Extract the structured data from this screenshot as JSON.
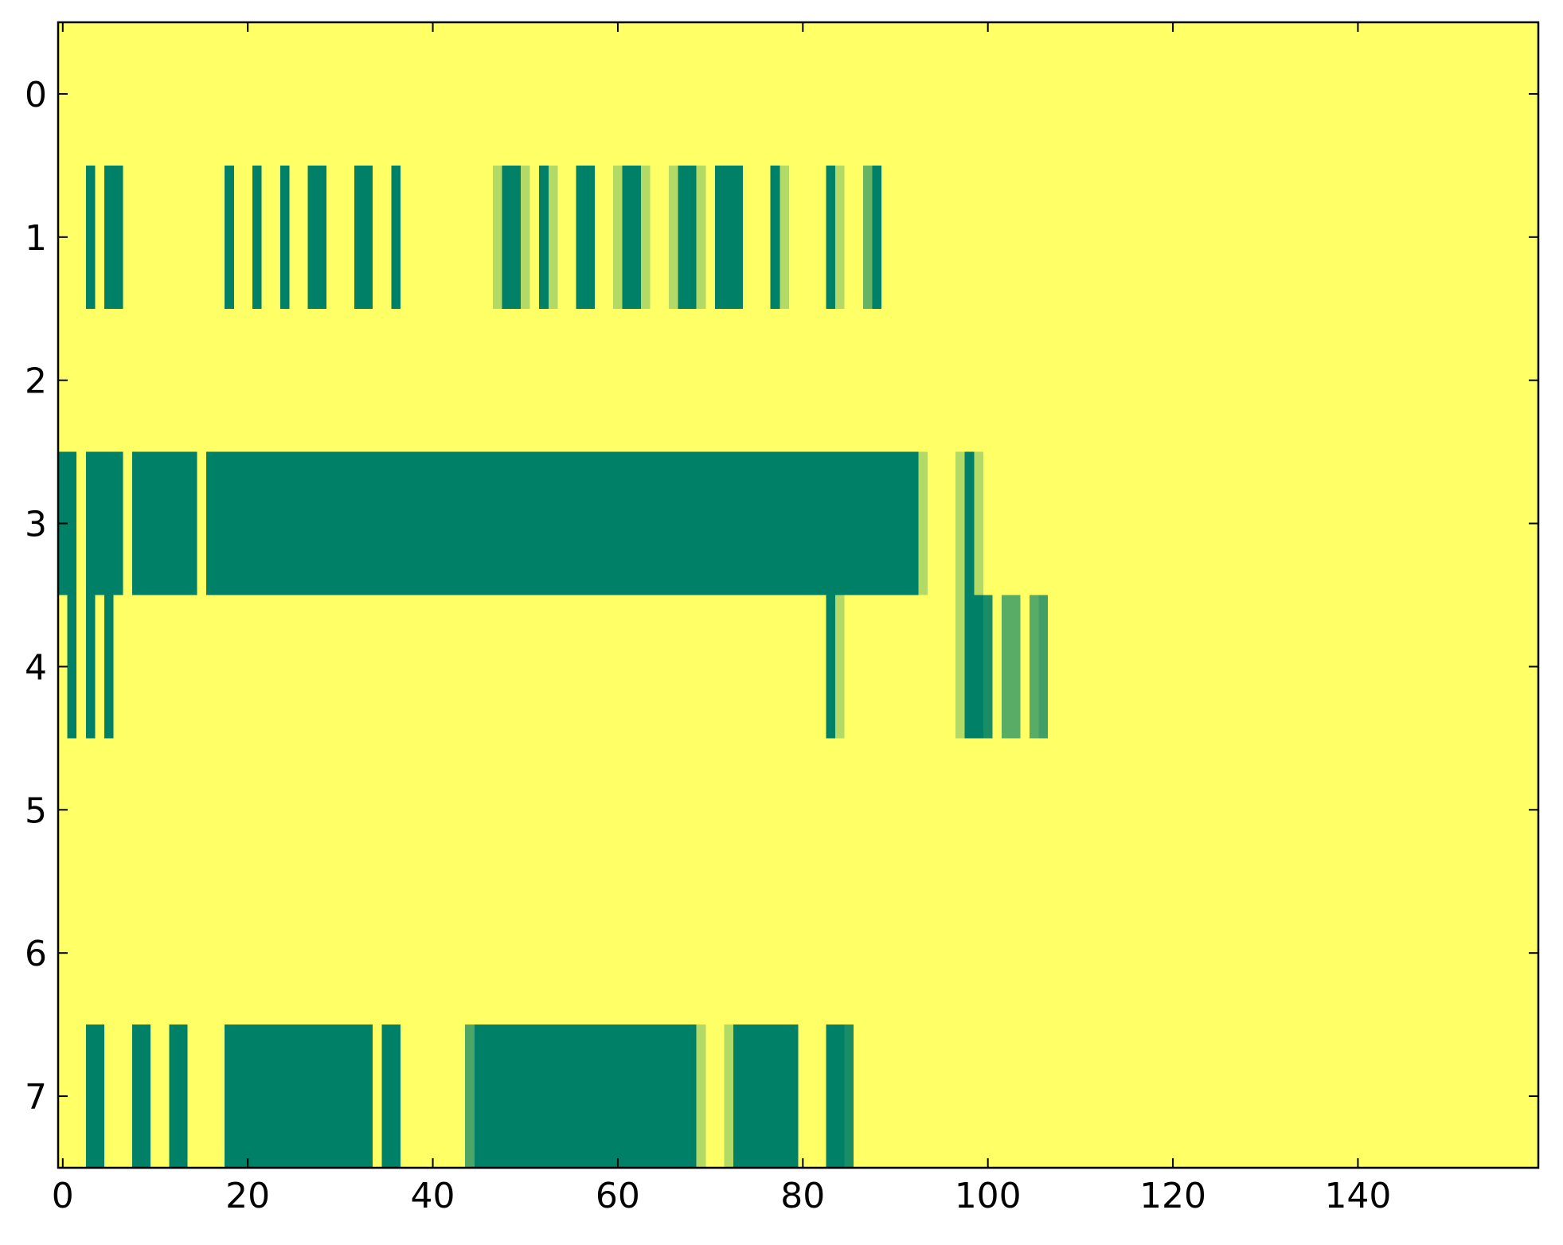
{
  "chart_data": {
    "type": "heatmap",
    "colormap": "summer",
    "clim": [
      0,
      1
    ],
    "xlim": [
      -0.5,
      159.5
    ],
    "ylim": [
      -0.5,
      7.5
    ],
    "y_inverted": true,
    "xticks": [
      0,
      20,
      40,
      60,
      80,
      100,
      120,
      140
    ],
    "yticks": [
      0,
      1,
      2,
      3,
      4,
      5,
      6,
      7
    ],
    "z": [
      [
        1,
        1,
        1,
        1,
        1,
        1,
        1,
        1,
        1,
        1,
        1,
        1,
        1,
        1,
        1,
        1,
        1,
        1,
        1,
        1,
        1,
        1,
        1,
        1,
        1,
        1,
        1,
        1,
        1,
        1,
        1,
        1,
        1,
        1,
        1,
        1,
        1,
        1,
        1,
        1,
        1,
        1,
        1,
        1,
        1,
        1,
        1,
        1,
        1,
        1,
        1,
        1,
        1,
        1,
        1,
        1,
        1,
        1,
        1,
        1,
        1,
        1,
        1,
        1,
        1,
        1,
        1,
        1,
        1,
        1,
        1,
        1,
        1,
        1,
        1,
        1,
        1,
        1,
        1,
        1,
        1,
        1,
        1,
        1,
        1,
        1,
        1,
        1,
        1,
        1,
        1,
        1,
        1,
        1,
        1,
        1,
        1,
        1,
        1,
        1,
        1,
        1,
        1,
        1,
        1,
        1,
        1,
        1,
        1,
        1,
        1,
        1,
        1,
        1,
        1,
        1,
        1,
        1,
        1,
        1,
        1,
        1,
        1,
        1,
        1,
        1,
        1,
        1,
        1,
        1,
        1,
        1,
        1,
        1,
        1,
        1,
        1,
        1,
        1,
        1,
        1,
        1,
        1,
        1,
        1,
        1,
        1,
        1,
        1,
        1,
        1,
        1,
        1,
        1,
        1,
        1,
        1,
        1,
        1,
        1
      ],
      [
        1,
        1,
        1,
        0,
        1,
        0,
        0,
        1,
        1,
        1,
        1,
        1,
        1,
        1,
        1,
        1,
        1,
        1,
        0,
        1,
        1,
        0,
        1,
        1,
        0,
        1,
        1,
        0,
        0,
        1,
        1,
        1,
        0,
        0,
        1,
        1,
        0,
        1,
        1,
        1,
        1,
        1,
        1,
        1,
        1,
        1,
        1,
        0.7,
        0,
        0,
        0.7,
        1,
        0,
        0.7,
        1,
        1,
        0,
        0,
        1,
        1,
        0.7,
        0,
        0,
        0.7,
        1,
        1,
        0.7,
        0,
        0,
        0.7,
        1,
        0,
        0,
        0,
        1,
        1,
        1,
        0,
        0.7,
        1,
        1,
        1,
        1,
        0,
        0.7,
        1,
        1,
        0.4,
        0,
        1,
        1,
        1,
        1,
        1,
        1,
        1,
        1,
        1,
        1,
        1,
        1,
        1,
        1,
        1,
        1,
        1,
        1,
        1,
        1,
        1,
        1,
        1,
        1,
        1,
        1,
        1,
        1,
        1,
        1,
        1,
        1,
        1,
        1,
        1,
        1,
        1,
        1,
        1,
        1,
        1,
        1,
        1,
        1,
        1,
        1,
        1,
        1,
        1,
        1,
        1,
        1,
        1,
        1,
        1,
        1,
        1,
        1,
        1,
        1,
        1,
        1,
        1,
        1,
        1,
        1,
        1,
        1,
        1,
        1,
        1
      ],
      [
        1,
        1,
        1,
        1,
        1,
        1,
        1,
        1,
        1,
        1,
        1,
        1,
        1,
        1,
        1,
        1,
        1,
        1,
        1,
        1,
        1,
        1,
        1,
        1,
        1,
        1,
        1,
        1,
        1,
        1,
        1,
        1,
        1,
        1,
        1,
        1,
        1,
        1,
        1,
        1,
        1,
        1,
        1,
        1,
        1,
        1,
        1,
        1,
        1,
        1,
        1,
        1,
        1,
        1,
        1,
        1,
        1,
        1,
        1,
        1,
        1,
        1,
        1,
        1,
        1,
        1,
        1,
        1,
        1,
        1,
        1,
        1,
        1,
        1,
        1,
        1,
        1,
        1,
        1,
        1,
        1,
        1,
        1,
        1,
        1,
        1,
        1,
        1,
        1,
        1,
        1,
        1,
        1,
        1,
        1,
        1,
        1,
        1,
        1,
        1,
        1,
        1,
        1,
        1,
        1,
        1,
        1,
        1,
        1,
        1,
        1,
        1,
        1,
        1,
        1,
        1,
        1,
        1,
        1,
        1,
        1,
        1,
        1,
        1,
        1,
        1,
        1,
        1,
        1,
        1,
        1,
        1,
        1,
        1,
        1,
        1,
        1,
        1,
        1,
        1,
        1,
        1,
        1,
        1,
        1,
        1,
        1,
        1,
        1,
        1,
        1,
        1,
        1,
        1,
        1,
        1,
        1,
        1,
        1,
        1
      ],
      [
        0,
        0,
        1,
        0,
        0,
        0,
        0,
        1,
        0,
        0,
        0,
        0,
        0,
        0,
        0,
        1,
        0,
        0,
        0,
        0,
        0,
        0,
        0,
        0,
        0,
        0,
        0,
        0,
        0,
        0,
        0,
        0,
        0,
        0,
        0,
        0,
        0,
        0,
        0,
        0,
        0,
        0,
        0,
        0,
        0,
        0,
        0,
        0,
        0,
        0,
        0,
        0,
        0,
        0,
        0,
        0,
        0,
        0,
        0,
        0,
        0,
        0,
        0,
        0,
        0,
        0,
        0,
        0,
        0,
        0,
        0,
        0,
        0,
        0,
        0,
        0,
        0,
        0,
        0,
        0,
        0,
        0,
        0,
        0,
        0,
        0,
        0,
        0,
        0,
        0,
        0,
        0,
        0,
        0.7,
        1,
        1,
        1,
        0.7,
        0,
        0.7,
        1,
        1,
        1,
        1,
        1,
        1,
        1,
        1,
        1,
        1,
        1,
        1,
        1,
        1,
        1,
        1,
        1,
        1,
        1,
        1,
        1,
        1,
        1,
        1,
        1,
        1,
        1,
        1,
        1,
        1,
        1,
        1,
        1,
        1,
        1,
        1,
        1,
        1,
        1,
        1,
        1,
        1,
        1,
        1,
        1,
        1,
        1,
        1,
        1,
        1,
        1,
        1,
        1,
        1,
        1,
        1,
        1,
        1,
        1,
        1
      ],
      [
        1,
        0,
        1,
        0,
        1,
        0,
        1,
        1,
        1,
        1,
        1,
        1,
        1,
        1,
        1,
        1,
        1,
        1,
        1,
        1,
        1,
        1,
        1,
        1,
        1,
        1,
        1,
        1,
        1,
        1,
        1,
        1,
        1,
        1,
        1,
        1,
        1,
        1,
        1,
        1,
        1,
        1,
        1,
        1,
        1,
        1,
        1,
        1,
        1,
        1,
        1,
        1,
        1,
        1,
        1,
        1,
        1,
        1,
        1,
        1,
        1,
        1,
        1,
        1,
        1,
        1,
        1,
        1,
        1,
        1,
        1,
        1,
        1,
        1,
        1,
        1,
        1,
        1,
        1,
        1,
        1,
        1,
        1,
        0,
        0.7,
        1,
        1,
        1,
        1,
        1,
        1,
        1,
        1,
        1,
        1,
        1,
        1,
        0.7,
        0,
        0,
        0.1,
        1,
        0.35,
        0.35,
        1,
        0.35,
        0.25,
        1,
        1,
        1,
        1,
        1,
        1,
        1,
        1,
        1,
        1,
        1,
        1,
        1,
        1,
        1,
        1,
        1,
        1,
        1,
        1,
        1,
        1,
        1,
        1,
        1,
        1,
        1,
        1,
        1,
        1,
        1,
        1,
        1,
        1,
        1,
        1,
        1,
        1,
        1,
        1,
        1,
        1,
        1,
        1,
        1,
        1,
        1,
        1,
        1,
        1,
        1,
        1,
        1
      ],
      [
        1,
        1,
        1,
        1,
        1,
        1,
        1,
        1,
        1,
        1,
        1,
        1,
        1,
        1,
        1,
        1,
        1,
        1,
        1,
        1,
        1,
        1,
        1,
        1,
        1,
        1,
        1,
        1,
        1,
        1,
        1,
        1,
        1,
        1,
        1,
        1,
        1,
        1,
        1,
        1,
        1,
        1,
        1,
        1,
        1,
        1,
        1,
        1,
        1,
        1,
        1,
        1,
        1,
        1,
        1,
        1,
        1,
        1,
        1,
        1,
        1,
        1,
        1,
        1,
        1,
        1,
        1,
        1,
        1,
        1,
        1,
        1,
        1,
        1,
        1,
        1,
        1,
        1,
        1,
        1,
        1,
        1,
        1,
        1,
        1,
        1,
        1,
        1,
        1,
        1,
        1,
        1,
        1,
        1,
        1,
        1,
        1,
        1,
        1,
        1,
        1,
        1,
        1,
        1,
        1,
        1,
        1,
        1,
        1,
        1,
        1,
        1,
        1,
        1,
        1,
        1,
        1,
        1,
        1,
        1,
        1,
        1,
        1,
        1,
        1,
        1,
        1,
        1,
        1,
        1,
        1,
        1,
        1,
        1,
        1,
        1,
        1,
        1,
        1,
        1,
        1,
        1,
        1,
        1,
        1,
        1,
        1,
        1,
        1,
        1,
        1,
        1,
        1,
        1,
        1,
        1,
        1,
        1,
        1,
        1
      ],
      [
        1,
        1,
        1,
        1,
        1,
        1,
        1,
        1,
        1,
        1,
        1,
        1,
        1,
        1,
        1,
        1,
        1,
        1,
        1,
        1,
        1,
        1,
        1,
        1,
        1,
        1,
        1,
        1,
        1,
        1,
        1,
        1,
        1,
        1,
        1,
        1,
        1,
        1,
        1,
        1,
        1,
        1,
        1,
        1,
        1,
        1,
        1,
        1,
        1,
        1,
        1,
        1,
        1,
        1,
        1,
        1,
        1,
        1,
        1,
        1,
        1,
        1,
        1,
        1,
        1,
        1,
        1,
        1,
        1,
        1,
        1,
        1,
        1,
        1,
        1,
        1,
        1,
        1,
        1,
        1,
        1,
        1,
        1,
        1,
        1,
        1,
        1,
        1,
        1,
        1,
        1,
        1,
        1,
        1,
        1,
        1,
        1,
        1,
        1,
        1,
        1,
        1,
        1,
        1,
        1,
        1,
        1,
        1,
        1,
        1,
        1,
        1,
        1,
        1,
        1,
        1,
        1,
        1,
        1,
        1,
        1,
        1,
        1,
        1,
        1,
        1,
        1,
        1,
        1,
        1,
        1,
        1,
        1,
        1,
        1,
        1,
        1,
        1,
        1,
        1,
        1,
        1,
        1,
        1,
        1,
        1,
        1,
        1,
        1,
        1,
        1,
        1,
        1,
        1,
        1,
        1,
        1,
        1,
        1,
        1
      ],
      [
        1,
        1,
        1,
        0,
        0,
        1,
        1,
        1,
        0,
        0,
        1,
        1,
        0,
        0,
        1,
        1,
        1,
        1,
        0,
        0,
        0,
        0,
        0,
        0,
        0,
        0,
        0,
        0,
        0,
        0,
        0,
        0,
        0,
        0,
        1,
        0,
        0,
        1,
        1,
        1,
        1,
        1,
        1,
        1,
        0.3,
        0,
        0,
        0,
        0,
        0,
        0,
        0,
        0,
        0,
        0,
        0,
        0,
        0,
        0,
        0,
        0,
        0,
        0,
        0,
        0,
        0,
        0,
        0,
        0,
        0.7,
        1,
        1,
        0.7,
        0,
        0,
        0,
        0,
        0,
        0,
        0,
        1,
        1,
        1,
        0,
        0,
        0.1,
        1,
        1,
        1,
        1,
        1,
        1,
        1,
        1,
        1,
        1,
        1,
        1,
        1,
        1,
        1,
        1,
        1,
        1,
        1,
        1,
        1,
        1,
        1,
        1,
        1,
        1,
        1,
        1,
        1,
        1,
        1,
        1,
        1,
        1,
        1,
        1,
        1,
        1,
        1,
        1,
        1,
        1,
        1,
        1,
        1,
        1,
        1,
        1,
        1,
        1,
        1,
        1,
        1,
        1,
        1,
        1,
        1,
        1,
        1,
        1,
        1,
        1,
        1,
        1,
        1,
        1,
        1,
        1,
        1,
        1,
        1,
        1,
        1,
        1
      ]
    ]
  }
}
